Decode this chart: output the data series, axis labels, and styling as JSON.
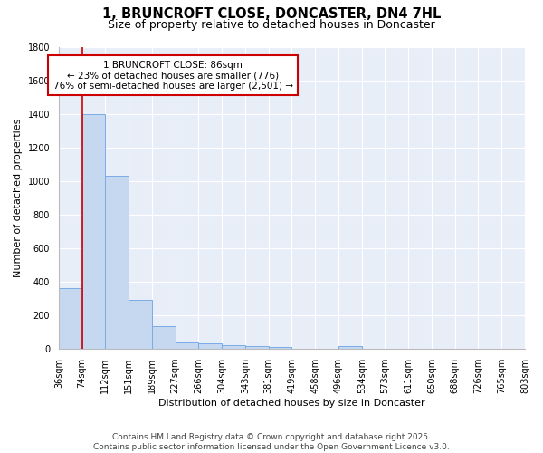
{
  "title_line1": "1, BRUNCROFT CLOSE, DONCASTER, DN4 7HL",
  "title_line2": "Size of property relative to detached houses in Doncaster",
  "xlabel": "Distribution of detached houses by size in Doncaster",
  "ylabel": "Number of detached properties",
  "bar_values": [
    360,
    1400,
    1030,
    290,
    135,
    40,
    35,
    25,
    15,
    10,
    0,
    0,
    15,
    0,
    0,
    0,
    0,
    0,
    0,
    0
  ],
  "bin_labels": [
    "36sqm",
    "74sqm",
    "112sqm",
    "151sqm",
    "189sqm",
    "227sqm",
    "266sqm",
    "304sqm",
    "343sqm",
    "381sqm",
    "419sqm",
    "458sqm",
    "496sqm",
    "534sqm",
    "573sqm",
    "611sqm",
    "650sqm",
    "688sqm",
    "726sqm",
    "765sqm",
    "803sqm"
  ],
  "bar_color": "#c5d8f0",
  "bar_edge_color": "#7aace6",
  "background_color": "#e8eef8",
  "grid_color": "white",
  "vline_x": 1.0,
  "vline_color": "#cc0000",
  "annotation_text": "1 BRUNCROFT CLOSE: 86sqm\n← 23% of detached houses are smaller (776)\n76% of semi-detached houses are larger (2,501) →",
  "annotation_box_color": "white",
  "annotation_box_edge_color": "#cc0000",
  "ylim": [
    0,
    1800
  ],
  "yticks": [
    0,
    200,
    400,
    600,
    800,
    1000,
    1200,
    1400,
    1600,
    1800
  ],
  "footnote": "Contains HM Land Registry data © Crown copyright and database right 2025.\nContains public sector information licensed under the Open Government Licence v3.0.",
  "title_fontsize": 10.5,
  "subtitle_fontsize": 9,
  "ylabel_fontsize": 8,
  "xlabel_fontsize": 8,
  "annotation_fontsize": 7.5,
  "footnote_fontsize": 6.5,
  "tick_fontsize": 7
}
